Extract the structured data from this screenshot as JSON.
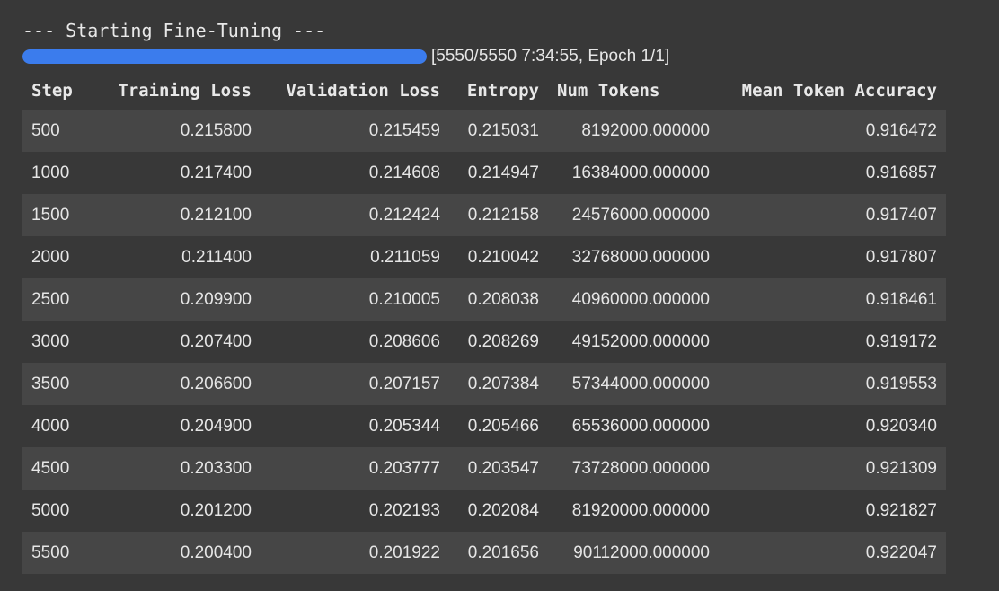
{
  "log": {
    "header_line": "--- Starting Fine-Tuning ---"
  },
  "progress": {
    "fraction": 1.0,
    "status_text": "[5550/5550 7:34:55, Epoch 1/1]",
    "fill_color": "#3b7ced"
  },
  "table": {
    "columns": [
      "Step",
      "Training Loss",
      "Validation Loss",
      "Entropy",
      "Num Tokens",
      "Mean Token Accuracy"
    ],
    "rows": [
      [
        "500",
        "0.215800",
        "0.215459",
        "0.215031",
        "8192000.000000",
        "0.916472"
      ],
      [
        "1000",
        "0.217400",
        "0.214608",
        "0.214947",
        "16384000.000000",
        "0.916857"
      ],
      [
        "1500",
        "0.212100",
        "0.212424",
        "0.212158",
        "24576000.000000",
        "0.917407"
      ],
      [
        "2000",
        "0.211400",
        "0.211059",
        "0.210042",
        "32768000.000000",
        "0.917807"
      ],
      [
        "2500",
        "0.209900",
        "0.210005",
        "0.208038",
        "40960000.000000",
        "0.918461"
      ],
      [
        "3000",
        "0.207400",
        "0.208606",
        "0.208269",
        "49152000.000000",
        "0.919172"
      ],
      [
        "3500",
        "0.206600",
        "0.207157",
        "0.207384",
        "57344000.000000",
        "0.919553"
      ],
      [
        "4000",
        "0.204900",
        "0.205344",
        "0.205466",
        "65536000.000000",
        "0.920340"
      ],
      [
        "4500",
        "0.203300",
        "0.203777",
        "0.203547",
        "73728000.000000",
        "0.921309"
      ],
      [
        "5000",
        "0.201200",
        "0.202193",
        "0.202084",
        "81920000.000000",
        "0.921827"
      ],
      [
        "5500",
        "0.200400",
        "0.201922",
        "0.201656",
        "90112000.000000",
        "0.922047"
      ]
    ]
  }
}
